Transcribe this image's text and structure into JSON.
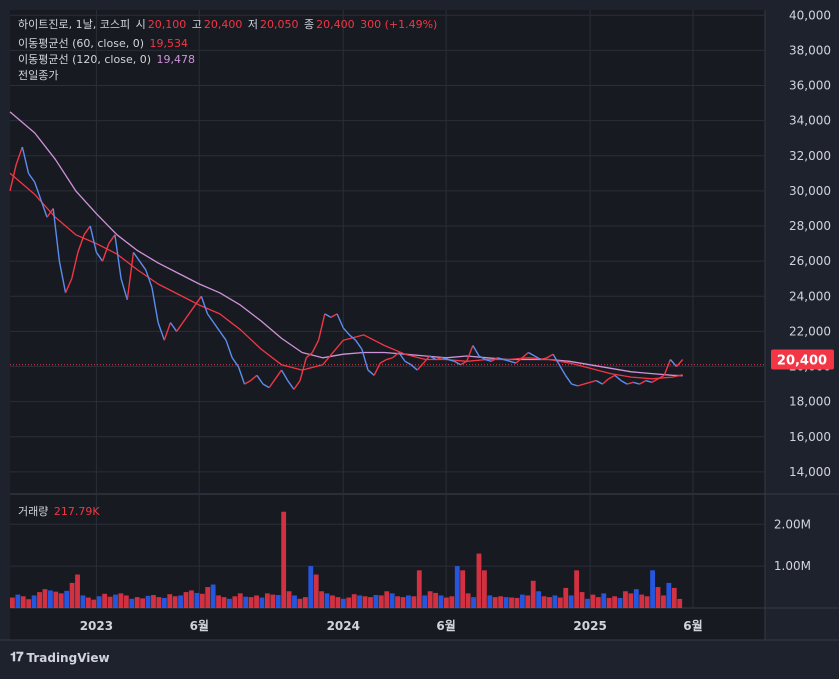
{
  "header": {
    "symbol": "하이트진로, 1날, 코스피",
    "open_label": "시",
    "open": "20,100",
    "high_label": "고",
    "high": "20,400",
    "low_label": "저",
    "low": "20,050",
    "close_label": "종",
    "close": "20,400",
    "change": "300 (+1.49%)"
  },
  "indicators": [
    {
      "label": "이동평균선 (60, close, 0)",
      "value": "19,534",
      "color": "#f23645"
    },
    {
      "label": "이동평균선 (120, close, 0)",
      "value": "19,478",
      "color": "#ce93d8"
    },
    {
      "label": "전일종가"
    }
  ],
  "volume": {
    "label": "거래량",
    "value": "217.79K"
  },
  "price_tag": "20,400",
  "brand": "TradingView",
  "colors": {
    "bg": "#1e222d",
    "plot_bg": "#181a21",
    "up": "#f23645",
    "down": "#2962ff",
    "ma60": "#f23645",
    "ma120": "#ce93d8",
    "grid": "#2a2e39",
    "text": "#d1d4dc"
  },
  "chart_data": {
    "type": "line",
    "title": "하이트진로, 1날, 코스피",
    "price_axis": {
      "ticks": [
        14000,
        16000,
        18000,
        20000,
        22000,
        24000,
        26000,
        28000,
        30000,
        32000,
        34000,
        36000,
        38000,
        40000
      ],
      "tick_labels": [
        "14,000",
        "16,000",
        "18,000",
        "20,000",
        "22,000",
        "24,000",
        "26,000",
        "28,000",
        "30,000",
        "32,000",
        "34,000",
        "36,000",
        "38,000",
        "40,000"
      ],
      "ylim": [
        12800,
        40300
      ]
    },
    "volume_axis": {
      "ticks": [
        1000000,
        2000000
      ],
      "tick_labels": [
        "1.00M",
        "2.00M"
      ],
      "ylim": [
        0,
        2700000
      ]
    },
    "time_axis": {
      "labels": [
        "2023",
        "6월",
        "2024",
        "6월",
        "2025",
        "6월"
      ],
      "label_months": [
        3,
        8,
        15,
        20,
        27,
        32
      ],
      "xlim_months": [
        -1.2,
        35.5
      ]
    },
    "previous_close": 20100,
    "series": [
      {
        "name": "price",
        "points": [
          [
            -1.2,
            30000
          ],
          [
            -0.9,
            31500
          ],
          [
            -0.6,
            32500
          ],
          [
            -0.3,
            31000
          ],
          [
            0,
            30500
          ],
          [
            0.3,
            29500
          ],
          [
            0.6,
            28500
          ],
          [
            0.9,
            29000
          ],
          [
            1.2,
            26000
          ],
          [
            1.5,
            24200
          ],
          [
            1.8,
            25000
          ],
          [
            2.1,
            26500
          ],
          [
            2.4,
            27500
          ],
          [
            2.7,
            28000
          ],
          [
            3,
            26500
          ],
          [
            3.3,
            26000
          ],
          [
            3.6,
            27000
          ],
          [
            3.9,
            27500
          ],
          [
            4.2,
            25000
          ],
          [
            4.5,
            23800
          ],
          [
            4.8,
            26500
          ],
          [
            5.1,
            26000
          ],
          [
            5.4,
            25500
          ],
          [
            5.7,
            24500
          ],
          [
            6,
            22500
          ],
          [
            6.3,
            21500
          ],
          [
            6.6,
            22500
          ],
          [
            6.9,
            22000
          ],
          [
            7.2,
            22500
          ],
          [
            7.5,
            23000
          ],
          [
            7.8,
            23500
          ],
          [
            8.1,
            24000
          ],
          [
            8.4,
            23000
          ],
          [
            8.7,
            22500
          ],
          [
            9,
            22000
          ],
          [
            9.3,
            21500
          ],
          [
            9.6,
            20500
          ],
          [
            9.9,
            20000
          ],
          [
            10.2,
            19000
          ],
          [
            10.5,
            19200
          ],
          [
            10.8,
            19500
          ],
          [
            11.1,
            19000
          ],
          [
            11.4,
            18800
          ],
          [
            11.7,
            19300
          ],
          [
            12,
            19800
          ],
          [
            12.3,
            19200
          ],
          [
            12.6,
            18700
          ],
          [
            12.9,
            19200
          ],
          [
            13.2,
            20500
          ],
          [
            13.5,
            20800
          ],
          [
            13.8,
            21500
          ],
          [
            14.1,
            23000
          ],
          [
            14.4,
            22800
          ],
          [
            14.7,
            23000
          ],
          [
            15,
            22200
          ],
          [
            15.3,
            21800
          ],
          [
            15.6,
            21500
          ],
          [
            15.9,
            21000
          ],
          [
            16.2,
            19800
          ],
          [
            16.5,
            19500
          ],
          [
            16.8,
            20200
          ],
          [
            17.1,
            20400
          ],
          [
            17.4,
            20500
          ],
          [
            17.7,
            20800
          ],
          [
            18,
            20300
          ],
          [
            18.3,
            20100
          ],
          [
            18.6,
            19800
          ],
          [
            18.9,
            20200
          ],
          [
            19.2,
            20600
          ],
          [
            19.5,
            20400
          ],
          [
            19.8,
            20500
          ],
          [
            20.1,
            20400
          ],
          [
            20.4,
            20300
          ],
          [
            20.7,
            20100
          ],
          [
            21,
            20300
          ],
          [
            21.3,
            21200
          ],
          [
            21.6,
            20600
          ],
          [
            21.9,
            20400
          ],
          [
            22.2,
            20300
          ],
          [
            22.5,
            20500
          ],
          [
            22.8,
            20400
          ],
          [
            23.1,
            20300
          ],
          [
            23.4,
            20200
          ],
          [
            23.7,
            20500
          ],
          [
            24,
            20800
          ],
          [
            24.3,
            20600
          ],
          [
            24.6,
            20400
          ],
          [
            24.9,
            20500
          ],
          [
            25.2,
            20700
          ],
          [
            25.5,
            20100
          ],
          [
            25.8,
            19500
          ],
          [
            26.1,
            19000
          ],
          [
            26.4,
            18900
          ],
          [
            26.7,
            19000
          ],
          [
            27,
            19100
          ],
          [
            27.3,
            19200
          ],
          [
            27.6,
            19000
          ],
          [
            27.9,
            19300
          ],
          [
            28.2,
            19500
          ],
          [
            28.5,
            19200
          ],
          [
            28.8,
            19000
          ],
          [
            29.1,
            19100
          ],
          [
            29.4,
            19000
          ],
          [
            29.7,
            19200
          ],
          [
            30,
            19100
          ],
          [
            30.3,
            19300
          ],
          [
            30.6,
            19500
          ],
          [
            30.9,
            20400
          ],
          [
            31.2,
            20000
          ],
          [
            31.5,
            20400
          ]
        ]
      },
      {
        "name": "이동평균선 (60, close, 0)",
        "points": [
          [
            -1.2,
            31000
          ],
          [
            0,
            29800
          ],
          [
            1,
            28500
          ],
          [
            2,
            27500
          ],
          [
            3,
            27000
          ],
          [
            4,
            26400
          ],
          [
            5,
            25500
          ],
          [
            6,
            24700
          ],
          [
            7,
            24100
          ],
          [
            8,
            23500
          ],
          [
            9,
            23000
          ],
          [
            10,
            22100
          ],
          [
            11,
            21000
          ],
          [
            12,
            20100
          ],
          [
            13,
            19800
          ],
          [
            14,
            20100
          ],
          [
            15,
            21500
          ],
          [
            16,
            21800
          ],
          [
            17,
            21200
          ],
          [
            18,
            20700
          ],
          [
            19,
            20400
          ],
          [
            20,
            20400
          ],
          [
            21,
            20300
          ],
          [
            22,
            20400
          ],
          [
            23,
            20400
          ],
          [
            24,
            20500
          ],
          [
            25,
            20400
          ],
          [
            26,
            20200
          ],
          [
            27,
            19900
          ],
          [
            28,
            19600
          ],
          [
            29,
            19400
          ],
          [
            30,
            19300
          ],
          [
            31,
            19400
          ],
          [
            31.5,
            19534
          ]
        ]
      },
      {
        "name": "이동평균선 (120, close, 0)",
        "points": [
          [
            -1.2,
            34500
          ],
          [
            0,
            33300
          ],
          [
            1,
            31800
          ],
          [
            2,
            30000
          ],
          [
            3,
            28700
          ],
          [
            4,
            27500
          ],
          [
            5,
            26600
          ],
          [
            6,
            25900
          ],
          [
            7,
            25300
          ],
          [
            8,
            24700
          ],
          [
            9,
            24200
          ],
          [
            10,
            23500
          ],
          [
            11,
            22600
          ],
          [
            12,
            21600
          ],
          [
            13,
            20800
          ],
          [
            14,
            20500
          ],
          [
            15,
            20700
          ],
          [
            16,
            20800
          ],
          [
            17,
            20800
          ],
          [
            18,
            20700
          ],
          [
            19,
            20600
          ],
          [
            20,
            20500
          ],
          [
            21,
            20600
          ],
          [
            22,
            20500
          ],
          [
            23,
            20400
          ],
          [
            24,
            20400
          ],
          [
            25,
            20400
          ],
          [
            26,
            20300
          ],
          [
            27,
            20100
          ],
          [
            28,
            19900
          ],
          [
            29,
            19700
          ],
          [
            30,
            19600
          ],
          [
            31,
            19500
          ],
          [
            31.5,
            19478
          ]
        ]
      },
      {
        "name": "거래량",
        "values_k": [
          250,
          320,
          280,
          210,
          300,
          380,
          450,
          420,
          390,
          350,
          410,
          600,
          800,
          300,
          250,
          200,
          280,
          340,
          270,
          320,
          350,
          300,
          220,
          260,
          230,
          290,
          310,
          260,
          240,
          330,
          280,
          300,
          380,
          420,
          360,
          340,
          500,
          560,
          300,
          260,
          220,
          280,
          350,
          270,
          260,
          300,
          250,
          350,
          320,
          310,
          2300,
          400,
          300,
          220,
          260,
          1000,
          800,
          400,
          350,
          300,
          260,
          220,
          250,
          330,
          300,
          280,
          260,
          310,
          300,
          400,
          350,
          280,
          260,
          300,
          280,
          900,
          300,
          400,
          360,
          300,
          250,
          280,
          1000,
          900,
          350,
          260,
          1300,
          900,
          300,
          260,
          280,
          260,
          250,
          240,
          320,
          300,
          650,
          400,
          280,
          260,
          300,
          250,
          480,
          300,
          900,
          380,
          220,
          320,
          260,
          350,
          240,
          280,
          240,
          400,
          350,
          450,
          320,
          280,
          900,
          500,
          300,
          600,
          480,
          217.79
        ]
      }
    ]
  }
}
